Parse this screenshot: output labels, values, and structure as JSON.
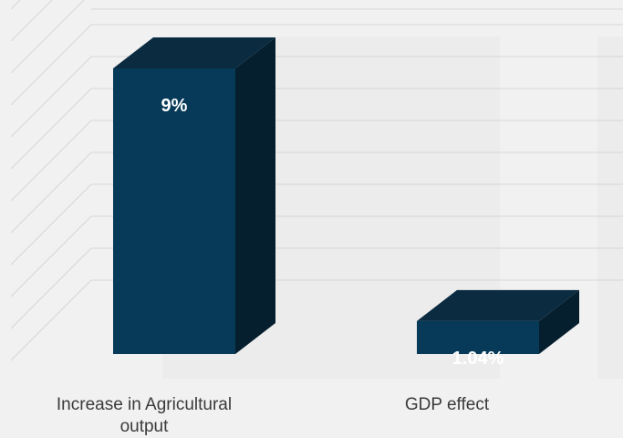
{
  "chart_data": {
    "type": "bar",
    "style": "3d-column",
    "categories": [
      "Increase in Agricultural output",
      "GDP effect"
    ],
    "category_lines": [
      [
        "Increase in Agricultural",
        "output"
      ],
      [
        "GDP effect"
      ]
    ],
    "values": [
      9,
      1.04
    ],
    "data_labels": [
      "9%",
      "1.04%"
    ],
    "ylim": [
      0,
      11
    ],
    "grid": true,
    "legend": "none"
  },
  "colors": {
    "bar_front": "#063a58",
    "bar_top": "#0b2b40",
    "bar_side": "#051f2f",
    "grid": "#d6d6d6",
    "wall": "#e8e8e8",
    "text": "#3a3a3a"
  }
}
